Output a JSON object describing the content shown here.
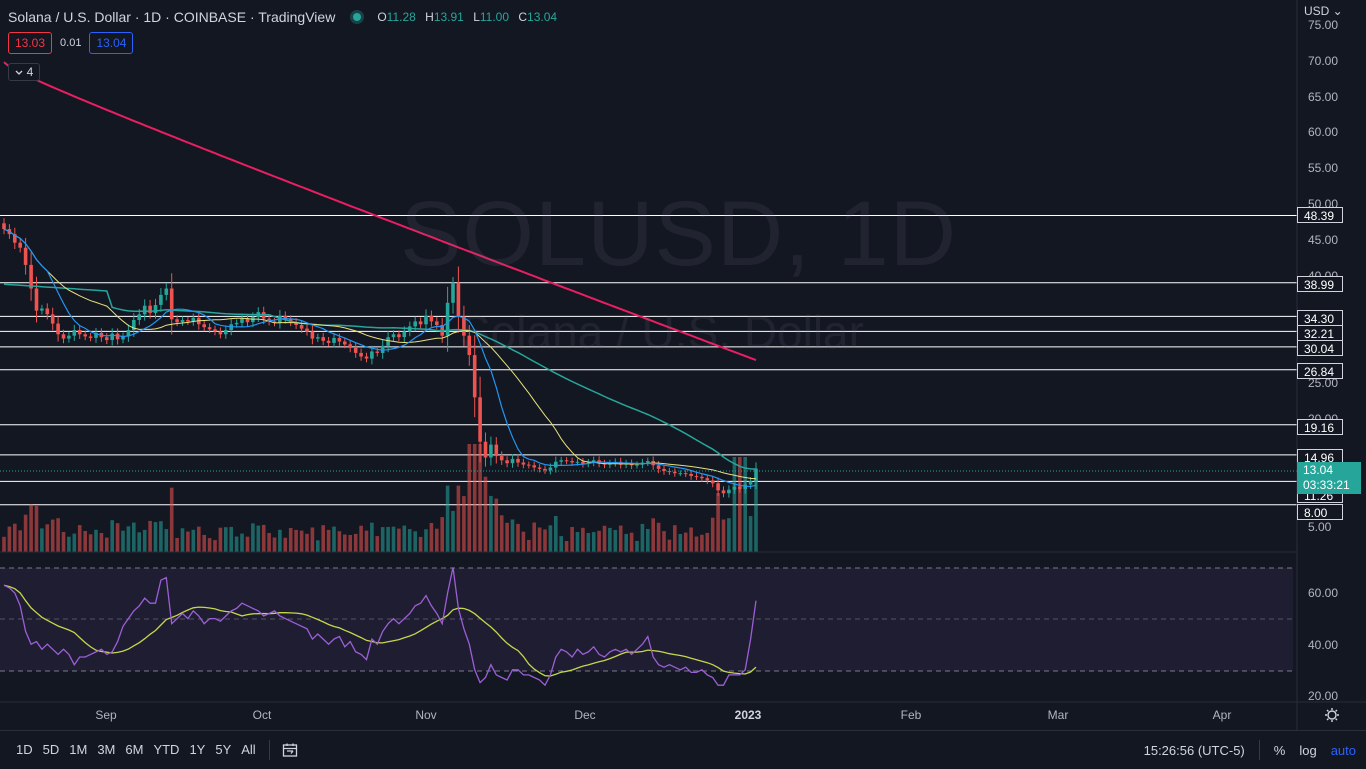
{
  "header": {
    "symbol_title": "Solana / U.S. Dollar · 1D · COINBASE · TradingView",
    "ohlc": {
      "o_label": "O",
      "o": "11.28",
      "h_label": "H",
      "h": "13.91",
      "l_label": "L",
      "l": "11.00",
      "c_label": "C",
      "c": "13.04"
    },
    "sell_price": "13.03",
    "spread": "0.01",
    "buy_price": "13.04",
    "indicators_count": "4"
  },
  "watermark": {
    "line1": "SOLUSD, 1D",
    "line2": "Solana / U.S. Dollar"
  },
  "price_axis": {
    "currency": "USD",
    "ticks": [
      "75.00",
      "70.00",
      "65.00",
      "60.00",
      "55.00",
      "50.00",
      "45.00",
      "40.00",
      "25.00",
      "20.00",
      "5.00"
    ],
    "level_tags": [
      "48.39",
      "38.99",
      "34.30",
      "32.21",
      "30.04",
      "26.84",
      "19.16",
      "14.96",
      "11.26",
      "8.00"
    ],
    "current_price": "13.04",
    "countdown": "03:33:21"
  },
  "rsi_axis": {
    "ticks": [
      "60.00",
      "40.00",
      "20.00"
    ]
  },
  "time_axis": {
    "labels": [
      "Sep",
      "Oct",
      "Nov",
      "Dec",
      "2023",
      "Feb",
      "Mar",
      "Apr"
    ]
  },
  "bottom_bar": {
    "ranges": [
      "1D",
      "5D",
      "1M",
      "3M",
      "6M",
      "YTD",
      "1Y",
      "5Y",
      "All"
    ],
    "clock": "15:26:56 (UTC-5)",
    "percent_label": "%",
    "log_label": "log",
    "auto_label": "auto"
  },
  "colors": {
    "background": "#131722",
    "up": "#26a69a",
    "down": "#ef5350",
    "ma_fast": "#2196f3",
    "ma_mid": "#e8e17a",
    "ma_slow": "#26a69a",
    "ma_200": "#e91e63",
    "rsi": "#9c5fd6",
    "rsi_signal": "#c6d64a",
    "accent": "#2962ff"
  },
  "chart_data": {
    "type": "candlestick",
    "series": [
      {
        "name": "SOLUSD",
        "note": "daily candles, approx. 2022-08-17 to 2023-01-04"
      },
      {
        "name": "RSI",
        "values_key": "rsi"
      }
    ],
    "horizontal_levels": [
      48.39,
      38.99,
      34.3,
      32.21,
      30.04,
      26.84,
      19.16,
      14.96,
      11.26,
      8.0
    ],
    "close": [
      46.5,
      45.8,
      44.6,
      43.9,
      41.5,
      38.2,
      35.1,
      35.4,
      34.6,
      33.3,
      31.8,
      31.2,
      31.6,
      32.4,
      31.8,
      31.5,
      31.3,
      32.0,
      31.4,
      31.0,
      31.9,
      31.1,
      31.5,
      32.4,
      33.8,
      34.6,
      35.8,
      34.8,
      35.9,
      37.3,
      38.2,
      33.9,
      33.5,
      33.8,
      33.6,
      34.1,
      33.2,
      32.8,
      32.5,
      32.2,
      31.8,
      32.4,
      33.2,
      33.4,
      34.0,
      33.5,
      34.2,
      34.9,
      34.0,
      33.6,
      33.4,
      34.4,
      33.9,
      33.5,
      33.1,
      32.6,
      32.2,
      31.2,
      31.4,
      30.9,
      30.6,
      31.3,
      30.8,
      30.4,
      29.9,
      29.2,
      28.7,
      28.4,
      29.4,
      29.2,
      30.2,
      31.4,
      31.8,
      31.4,
      32.2,
      32.9,
      33.6,
      33.2,
      34.4,
      33.6,
      33.1,
      31.6,
      36.2,
      38.99,
      34.3,
      31.6,
      28.9,
      23.0,
      16.8,
      14.6,
      16.4,
      14.8,
      14.2,
      13.8,
      14.4,
      13.9,
      13.6,
      13.5,
      13.2,
      13.0,
      12.8,
      13.2,
      14.0,
      14.2,
      14.1,
      13.9,
      14.0,
      13.7,
      13.9,
      14.2,
      13.8,
      13.6,
      13.8,
      14.0,
      13.6,
      13.8,
      13.5,
      13.6,
      13.9,
      14.1,
      13.5,
      13.0,
      12.7,
      12.6,
      12.4,
      12.4,
      12.3,
      12.0,
      11.9,
      11.7,
      11.4,
      11.0,
      10.0,
      9.6,
      10.1,
      10.5,
      10.2,
      10.8,
      11.28,
      13.04
    ],
    "rsi": [
      63,
      62,
      60,
      55,
      45,
      40,
      41,
      38,
      40,
      38,
      36,
      38,
      36,
      32,
      35,
      35,
      36,
      37,
      38,
      36,
      37,
      41,
      47,
      50,
      53,
      55,
      58,
      56,
      56,
      65,
      66,
      48,
      50,
      52,
      50,
      53,
      51,
      48,
      50,
      50,
      49,
      51,
      53,
      54,
      56,
      55,
      54,
      53,
      51,
      52,
      53,
      51,
      50,
      49,
      48,
      47,
      46,
      42,
      44,
      42,
      40,
      42,
      43,
      39,
      41,
      37,
      36,
      34,
      42,
      40,
      45,
      48,
      50,
      48,
      50,
      52,
      55,
      56,
      59,
      55,
      52,
      48,
      60,
      70,
      54,
      46,
      40,
      30,
      25,
      27,
      32,
      28,
      27,
      26,
      30,
      30,
      28,
      28,
      27,
      26,
      24,
      28,
      35,
      38,
      37,
      35,
      38,
      36,
      37,
      39,
      36,
      35,
      37,
      38,
      37,
      38,
      36,
      38,
      40,
      43,
      35,
      32,
      31,
      32,
      31,
      30,
      31,
      29,
      29,
      30,
      28,
      27,
      24,
      24,
      28,
      28,
      28,
      30,
      42,
      57
    ],
    "ylim": [
      5,
      75
    ],
    "rsi_ylim": [
      20,
      70
    ]
  }
}
